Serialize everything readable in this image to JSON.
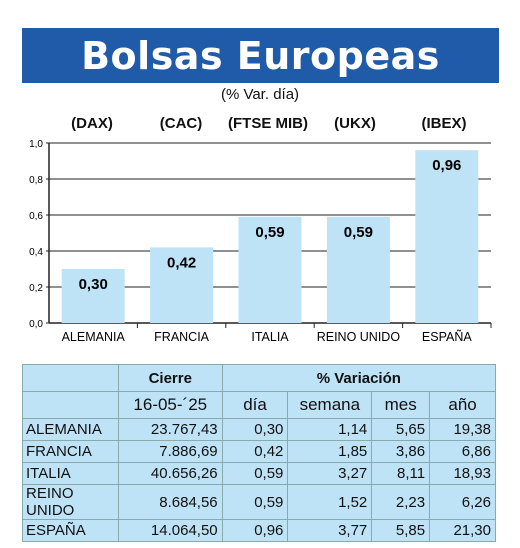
{
  "title": "Bolsas Europeas",
  "subtitle": "(% Var. día)",
  "chart_data": {
    "type": "bar",
    "indices": [
      "(DAX)",
      "(CAC)",
      "(FTSE MIB)",
      "(UKX)",
      "(IBEX)"
    ],
    "categories": [
      "ALEMANIA",
      "FRANCIA",
      "ITALIA",
      "REINO UNIDO",
      "ESPAÑA"
    ],
    "values": [
      0.3,
      0.42,
      0.59,
      0.59,
      0.96
    ],
    "value_labels": [
      "0,30",
      "0,42",
      "0,59",
      "0,59",
      "0,96"
    ],
    "yticks": [
      "0,0",
      "0,2",
      "0,4",
      "0,6",
      "0,8",
      "1,0"
    ],
    "ylim": [
      0,
      1.0
    ],
    "grid": true,
    "bar_color": "#bfe3f6"
  },
  "table": {
    "header_cierre": "Cierre",
    "header_variacion": "% Variación",
    "date": "16-05-´25",
    "columns": [
      "día",
      "semana",
      "mes",
      "año"
    ],
    "rows": [
      {
        "country": "ALEMANIA",
        "cierre": "23.767,43",
        "dia": "0,30",
        "semana": "1,14",
        "mes": "5,65",
        "ano": "19,38"
      },
      {
        "country": "FRANCIA",
        "cierre": "7.886,69",
        "dia": "0,42",
        "semana": "1,85",
        "mes": "3,86",
        "ano": "6,86"
      },
      {
        "country": "ITALIA",
        "cierre": "40.656,26",
        "dia": "0,59",
        "semana": "3,27",
        "mes": "8,11",
        "ano": "18,93"
      },
      {
        "country": "REINO UNIDO",
        "cierre": "8.684,56",
        "dia": "0,59",
        "semana": "1,52",
        "mes": "2,23",
        "ano": "6,26"
      },
      {
        "country": "ESPAÑA",
        "cierre": "14.064,50",
        "dia": "0,96",
        "semana": "3,77",
        "mes": "5,85",
        "ano": "21,30"
      }
    ]
  },
  "colors": {
    "banner": "#1f5ba8",
    "bars": "#bfe3f6",
    "table_bg": "#bfe3f6"
  }
}
